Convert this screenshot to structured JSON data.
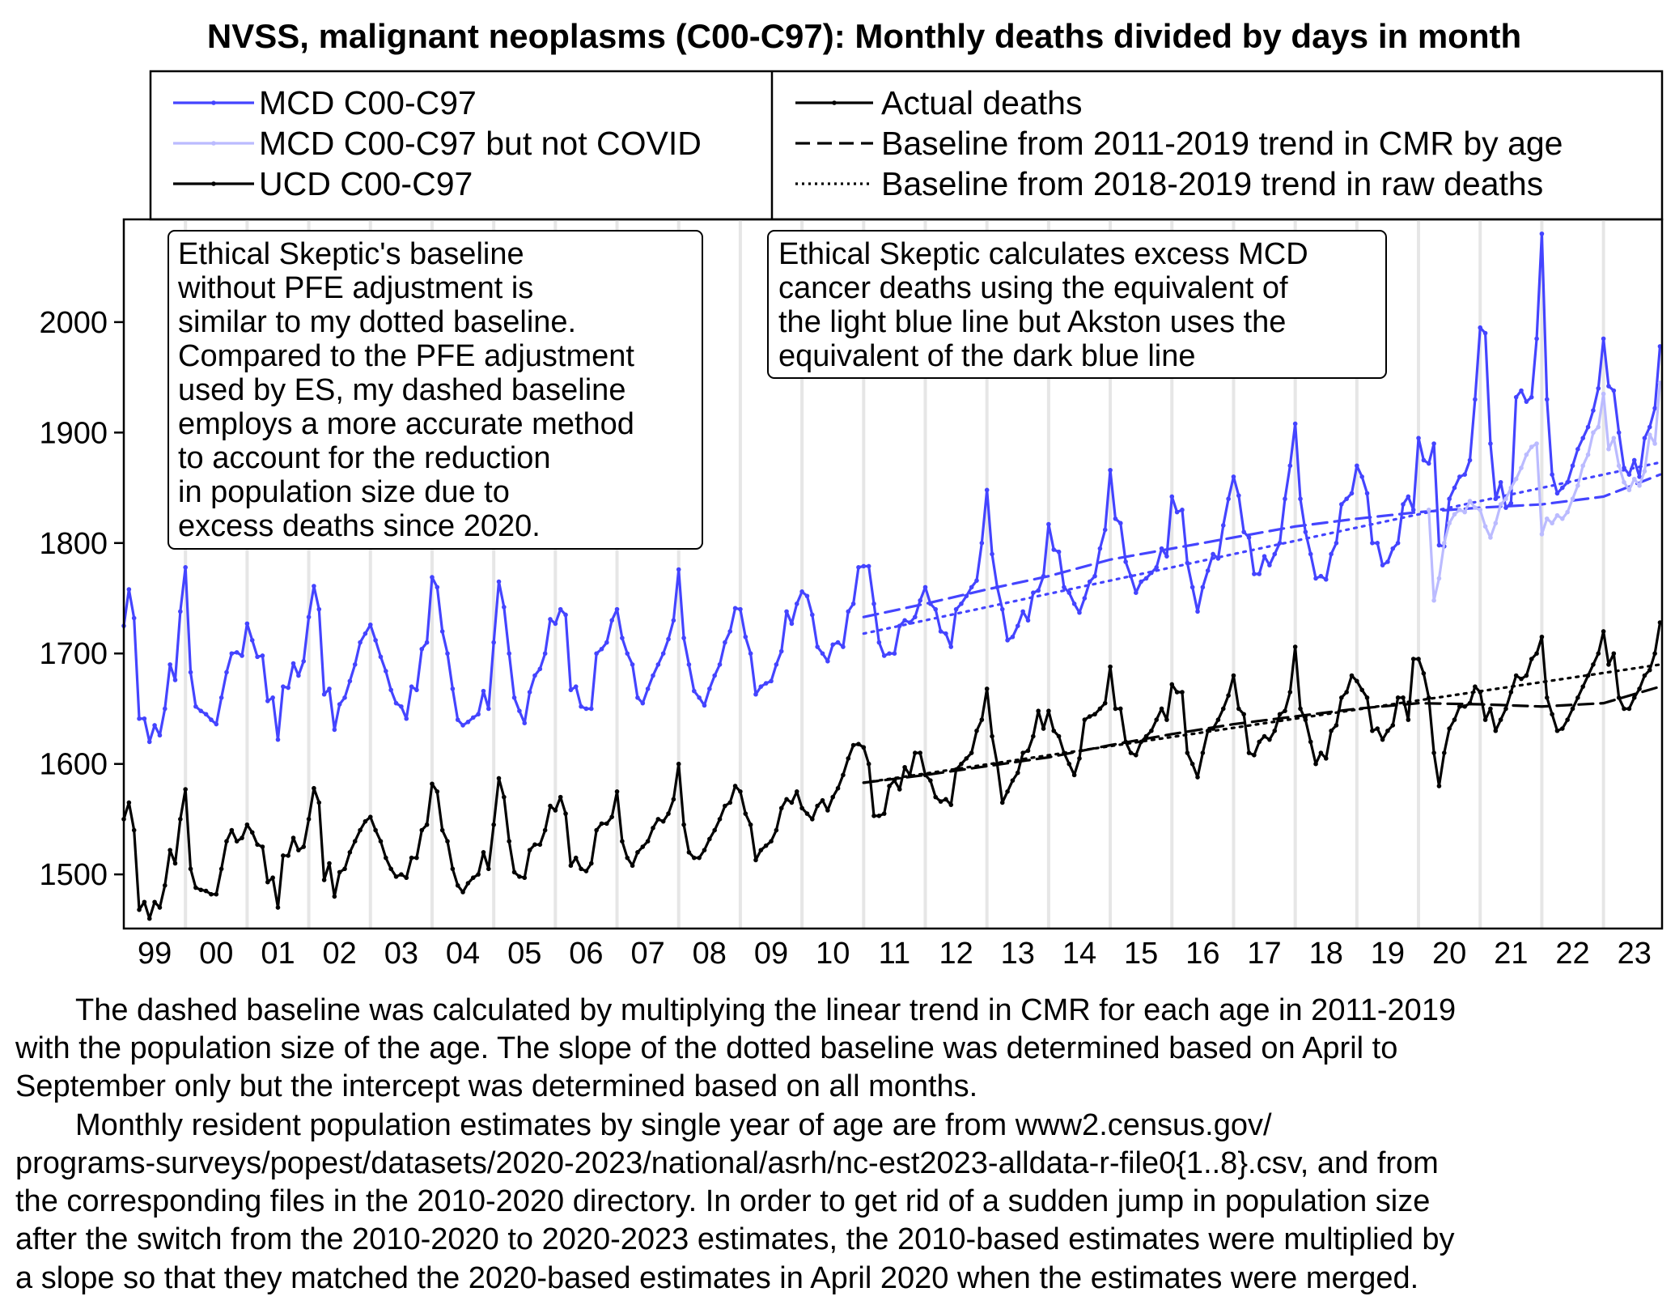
{
  "chart_data": {
    "type": "line",
    "title": "NVSS, malignant neoplasms (C00-C97): Monthly deaths divided by days in month",
    "xlim": [
      1999,
      2023.95
    ],
    "ylim": [
      1451,
      2093
    ],
    "yticks": [
      1500,
      1600,
      1700,
      1800,
      1900,
      2000
    ],
    "xtick_labels": [
      "99",
      "00",
      "01",
      "02",
      "03",
      "04",
      "05",
      "06",
      "07",
      "08",
      "09",
      "10",
      "11",
      "12",
      "13",
      "14",
      "15",
      "16",
      "17",
      "18",
      "19",
      "20",
      "21",
      "22",
      "23"
    ],
    "grid": "vertical year lines",
    "colors": {
      "mcd": "#4444ff",
      "mcd_not_covid": "#bbbbff",
      "ucd": "#000000",
      "grid": "#e6e6e6"
    },
    "legend": {
      "placement": "top, above plot",
      "series_entries": [
        {
          "label": "MCD C00-C97",
          "color": "#4444ff"
        },
        {
          "label": "MCD C00-C97 but not COVID",
          "color": "#bbbbff"
        },
        {
          "label": "UCD C00-C97",
          "color": "#000000"
        }
      ],
      "style_entries": [
        {
          "label": "Actual deaths",
          "style": "solid"
        },
        {
          "label": "Baseline from 2011-2019 trend in CMR by age",
          "style": "dashed"
        },
        {
          "label": "Baseline from 2018-2019 trend in raw deaths",
          "style": "dotted"
        }
      ]
    },
    "series": [
      {
        "name": "MCD C00-C97",
        "start": "1999-01",
        "color": "#4444ff",
        "values": [
          [
            1725,
            1758,
            1732,
            1641,
            1641,
            1620,
            1635,
            1626,
            1650,
            1690,
            1676,
            1738
          ],
          [
            1778,
            1683,
            1652,
            1648,
            1645,
            1640,
            1636,
            1660,
            1683,
            1700,
            1701,
            1698
          ],
          [
            1727,
            1712,
            1697,
            1698,
            1657,
            1660,
            1622,
            1670,
            1669,
            1691,
            1680,
            1693
          ],
          [
            1733,
            1761,
            1740,
            1663,
            1668,
            1631,
            1654,
            1660,
            1675,
            1690,
            1710,
            1718
          ],
          [
            1726,
            1712,
            1697,
            1684,
            1667,
            1655,
            1652,
            1641,
            1670,
            1667,
            1704,
            1710
          ],
          [
            1769,
            1760,
            1720,
            1700,
            1668,
            1640,
            1635,
            1638,
            1642,
            1645,
            1666,
            1650
          ],
          [
            1710,
            1765,
            1742,
            1700,
            1660,
            1648,
            1637,
            1665,
            1680,
            1686,
            1700,
            1731
          ],
          [
            1727,
            1740,
            1735,
            1667,
            1670,
            1652,
            1650,
            1650,
            1700,
            1704,
            1710,
            1730
          ],
          [
            1740,
            1714,
            1700,
            1690,
            1660,
            1655,
            1668,
            1680,
            1690,
            1700,
            1713,
            1730
          ],
          [
            1776,
            1714,
            1690,
            1666,
            1660,
            1653,
            1668,
            1680,
            1690,
            1710,
            1720,
            1741
          ],
          [
            1740,
            1715,
            1700,
            1663,
            1670,
            1673,
            1675,
            1690,
            1702,
            1738,
            1727,
            1745
          ],
          [
            1756,
            1752,
            1735,
            1706,
            1700,
            1693,
            1708,
            1710,
            1706,
            1738,
            1745,
            1778
          ],
          [
            1779,
            1779,
            1745,
            1710,
            1698,
            1700,
            1700,
            1725,
            1730,
            1728,
            1733,
            1748
          ],
          [
            1760,
            1745,
            1740,
            1720,
            1718,
            1706,
            1740,
            1745,
            1752,
            1760,
            1766,
            1800
          ],
          [
            1848,
            1790,
            1760,
            1740,
            1712,
            1715,
            1725,
            1738,
            1730,
            1755,
            1757,
            1770
          ],
          [
            1817,
            1794,
            1792,
            1760,
            1755,
            1745,
            1737,
            1750,
            1765,
            1770,
            1795,
            1812
          ],
          [
            1866,
            1822,
            1818,
            1783,
            1770,
            1755,
            1765,
            1768,
            1773,
            1778,
            1795,
            1788
          ],
          [
            1842,
            1828,
            1830,
            1782,
            1760,
            1738,
            1760,
            1775,
            1790,
            1786,
            1816,
            1840
          ],
          [
            1860,
            1843,
            1810,
            1805,
            1772,
            1772,
            1788,
            1780,
            1790,
            1800,
            1840,
            1870
          ],
          [
            1908,
            1840,
            1810,
            1790,
            1768,
            1770,
            1767,
            1790,
            1800,
            1835,
            1840,
            1845
          ],
          [
            1870,
            1860,
            1845,
            1800,
            1800,
            1780,
            1783,
            1795,
            1800,
            1835,
            1842,
            1830
          ],
          [
            1895,
            1875,
            1872,
            1890,
            1798,
            1797,
            1840,
            1850,
            1860,
            1862,
            1875,
            1930
          ],
          [
            1995,
            1990,
            1890,
            1840,
            1855,
            1832,
            1836,
            1932,
            1938,
            1928,
            1932,
            1985
          ],
          [
            2080,
            1930,
            1862,
            1845,
            1850,
            1855,
            1870,
            1885,
            1895,
            1905,
            1920,
            1940
          ],
          [
            1985,
            1942,
            1938,
            1900,
            1868,
            1862,
            1875,
            1860,
            1895,
            1905,
            1922,
            1978
          ]
        ]
      },
      {
        "name": "MCD C00-C97 but not COVID",
        "start": "2020-03",
        "color": "#bbbbff",
        "values": [
          [
            1830,
            1748,
            1768,
            1800,
            1818,
            1826,
            1830,
            1828,
            1838,
            1832
          ],
          [
            1830,
            1815,
            1805,
            1818,
            1835,
            1840,
            1850,
            1858,
            1868,
            1880,
            1887,
            1890
          ],
          [
            1808,
            1822,
            1818,
            1825,
            1822,
            1828,
            1840,
            1852,
            1870,
            1880,
            1900,
            1905
          ],
          [
            1935,
            1885,
            1895,
            1870,
            1855,
            1848,
            1858,
            1852,
            1865,
            1898,
            1890,
            1945
          ]
        ]
      },
      {
        "name": "UCD C00-C97",
        "start": "1999-01",
        "color": "#000000",
        "values": [
          [
            1550,
            1565,
            1540,
            1468,
            1475,
            1460,
            1475,
            1470,
            1490,
            1522,
            1510,
            1550
          ],
          [
            1577,
            1505,
            1488,
            1486,
            1485,
            1482,
            1482,
            1505,
            1530,
            1540,
            1530,
            1533
          ],
          [
            1545,
            1538,
            1527,
            1525,
            1493,
            1497,
            1470,
            1517,
            1517,
            1533,
            1522,
            1525
          ],
          [
            1550,
            1578,
            1565,
            1495,
            1510,
            1480,
            1502,
            1505,
            1520,
            1530,
            1540,
            1548
          ],
          [
            1552,
            1540,
            1530,
            1515,
            1505,
            1498,
            1500,
            1497,
            1515,
            1515,
            1540,
            1545
          ],
          [
            1582,
            1575,
            1540,
            1530,
            1505,
            1490,
            1484,
            1492,
            1497,
            1500,
            1520,
            1505
          ],
          [
            1545,
            1587,
            1570,
            1530,
            1502,
            1498,
            1497,
            1522,
            1527,
            1527,
            1540,
            1562
          ],
          [
            1558,
            1570,
            1555,
            1508,
            1515,
            1505,
            1503,
            1510,
            1540,
            1546,
            1546,
            1552
          ],
          [
            1575,
            1530,
            1515,
            1508,
            1520,
            1525,
            1530,
            1542,
            1550,
            1548,
            1555,
            1568
          ],
          [
            1600,
            1545,
            1520,
            1515,
            1515,
            1522,
            1532,
            1540,
            1550,
            1562,
            1565,
            1580
          ],
          [
            1575,
            1555,
            1545,
            1513,
            1522,
            1526,
            1530,
            1540,
            1560,
            1568,
            1565,
            1575
          ],
          [
            1560,
            1555,
            1550,
            1562,
            1567,
            1558,
            1570,
            1578,
            1590,
            1605,
            1617,
            1618
          ],
          [
            1615,
            1600,
            1553,
            1553,
            1555,
            1580,
            1585,
            1577,
            1597,
            1590,
            1610,
            1610
          ],
          [
            1590,
            1585,
            1570,
            1566,
            1568,
            1563,
            1595,
            1600,
            1605,
            1610,
            1630,
            1640
          ],
          [
            1668,
            1625,
            1600,
            1565,
            1575,
            1585,
            1592,
            1610,
            1612,
            1625,
            1648,
            1632
          ],
          [
            1648,
            1630,
            1625,
            1610,
            1600,
            1590,
            1605,
            1640,
            1643,
            1645,
            1650,
            1655
          ],
          [
            1688,
            1650,
            1650,
            1620,
            1610,
            1608,
            1620,
            1625,
            1630,
            1640,
            1650,
            1640
          ],
          [
            1672,
            1665,
            1665,
            1610,
            1600,
            1588,
            1610,
            1630,
            1632,
            1640,
            1650,
            1662
          ],
          [
            1680,
            1650,
            1645,
            1610,
            1608,
            1620,
            1625,
            1622,
            1630,
            1645,
            1648,
            1665
          ],
          [
            1706,
            1650,
            1640,
            1620,
            1600,
            1610,
            1605,
            1630,
            1635,
            1660,
            1665,
            1680
          ],
          [
            1675,
            1667,
            1660,
            1630,
            1632,
            1622,
            1630,
            1635,
            1660,
            1660,
            1640,
            1695
          ],
          [
            1695,
            1682,
            1660,
            1610,
            1580,
            1610,
            1632,
            1640,
            1652,
            1652,
            1655,
            1670
          ],
          [
            1665,
            1640,
            1650,
            1630,
            1640,
            1650,
            1665,
            1680,
            1677,
            1680,
            1695,
            1700
          ],
          [
            1715,
            1660,
            1645,
            1630,
            1632,
            1640,
            1650,
            1660,
            1670,
            1680,
            1690,
            1700
          ],
          [
            1720,
            1690,
            1700,
            1660,
            1650,
            1650,
            1660,
            1668,
            1680,
            1685,
            1700,
            1728
          ]
        ]
      }
    ],
    "baselines": [
      {
        "series": "MCD C00-C97",
        "style": "dashed",
        "color": "#4444ff",
        "x": [
          2011,
          2012,
          2013,
          2014,
          2015,
          2016,
          2017,
          2018,
          2019,
          2020,
          2021,
          2022,
          2023,
          2023.92
        ],
        "y": [
          1733,
          1745,
          1758,
          1770,
          1785,
          1795,
          1805,
          1815,
          1822,
          1828,
          1832,
          1835,
          1842,
          1862
        ]
      },
      {
        "series": "MCD C00-C97",
        "style": "dotted",
        "color": "#4444ff",
        "x": [
          2011,
          2023.92
        ],
        "y": [
          1718,
          1873
        ]
      },
      {
        "series": "UCD C00-C97",
        "style": "dashed",
        "color": "#000000",
        "x": [
          2011,
          2012,
          2013,
          2014,
          2015,
          2016,
          2017,
          2018,
          2019,
          2020,
          2021,
          2022,
          2023,
          2023.92
        ],
        "y": [
          1583,
          1590,
          1598,
          1606,
          1617,
          1627,
          1636,
          1643,
          1650,
          1655,
          1654,
          1652,
          1655,
          1670
        ]
      },
      {
        "series": "UCD C00-C97",
        "style": "dotted",
        "color": "#000000",
        "x": [
          2011,
          2023.92
        ],
        "y": [
          1583,
          1690
        ]
      }
    ],
    "annotations": [
      {
        "lines": [
          "Ethical Skeptic's baseline",
          "without PFE adjustment is",
          "similar to my dotted baseline.",
          "Compared to the PFE adjustment",
          "used by ES, my dashed baseline",
          "employs a more accurate method",
          "to account for the reduction",
          "in population size due to",
          "excess deaths since 2020."
        ]
      },
      {
        "lines": [
          "Ethical Skeptic calculates excess MCD",
          "cancer deaths using the equivalent of",
          "the light blue line but Akston uses the",
          "equivalent of the dark blue line"
        ]
      }
    ]
  },
  "footer": {
    "lines": [
      "The dashed baseline was calculated by multiplying the linear trend in CMR for each age in 2011-2019",
      "with the population size of the age. The slope of the dotted baseline was determined based on April to",
      "September only but the intercept was determined based on all months.",
      "Monthly resident population estimates by single year of age are from www2.census.gov/",
      "programs-surveys/popest/datasets/2020-2023/national/asrh/nc-est2023-alldata-r-file0{1..8}.csv, and from",
      "the corresponding files in the 2010-2020 directory. In order to get rid of a sudden jump in population size",
      "after the switch from the 2010-2020 to 2020-2023 estimates, the 2010-based estimates were multiplied by",
      "a slope so that they matched the 2020-based estimates in April 2020 when the estimates were merged."
    ]
  }
}
